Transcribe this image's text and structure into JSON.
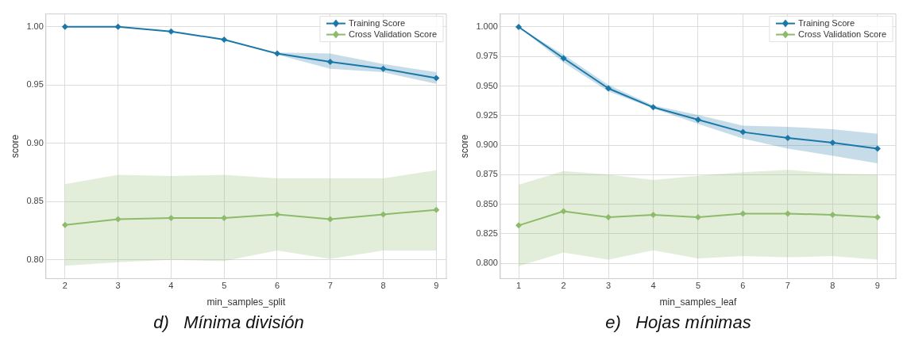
{
  "chart_data": [
    {
      "type": "line",
      "xlabel": "min_samples_split",
      "ylabel": "score",
      "x": [
        2,
        3,
        4,
        5,
        6,
        7,
        8,
        9
      ],
      "xlim": [
        1.64,
        9.19
      ],
      "xticks": [
        2,
        3,
        4,
        5,
        6,
        7,
        8,
        9
      ],
      "ylim": [
        0.784,
        1.011
      ],
      "yticks": [
        {
          "value": 0.8,
          "label": "0.80"
        },
        0.85,
        {
          "value": 0.9,
          "label": "0.90"
        },
        0.95,
        {
          "value": 1,
          "label": "1.00"
        }
      ],
      "grid": true,
      "legend": "top right",
      "marker": "diamond",
      "annotations": [
        "d)   Mínima división"
      ],
      "series": [
        {
          "name": "Training Score",
          "color": "#1a78a8",
          "values": [
            1.0,
            1.0,
            0.996,
            0.989,
            0.977,
            0.97,
            0.964,
            0.956
          ],
          "lower": [
            1.0,
            1.0,
            0.996,
            0.989,
            0.976,
            0.964,
            0.961,
            0.951
          ],
          "upper": [
            1.0,
            1.0,
            0.996,
            0.989,
            0.978,
            0.977,
            0.968,
            0.961
          ]
        },
        {
          "name": "Cross Validation Score",
          "color": "#8dbb6b",
          "values": [
            0.83,
            0.835,
            0.836,
            0.836,
            0.839,
            0.835,
            0.839,
            0.843
          ],
          "lower": [
            0.795,
            0.798,
            0.8,
            0.799,
            0.808,
            0.801,
            0.808,
            0.808
          ],
          "upper": [
            0.865,
            0.873,
            0.872,
            0.873,
            0.87,
            0.87,
            0.87,
            0.877
          ]
        }
      ]
    },
    {
      "type": "line",
      "xlabel": "min_samples_leaf",
      "ylabel": "score",
      "x": [
        1,
        2,
        3,
        4,
        5,
        6,
        7,
        8,
        9
      ],
      "xlim": [
        0.59,
        9.41
      ],
      "xticks": [
        1,
        2,
        3,
        4,
        5,
        6,
        7,
        8,
        9
      ],
      "ylim": [
        0.787,
        1.011
      ],
      "yticks": [
        {
          "value": 0.8,
          "label": "0.800"
        },
        0.825,
        {
          "value": 0.85,
          "label": "0.850"
        },
        0.875,
        {
          "value": 0.9,
          "label": "0.900"
        },
        0.925,
        {
          "value": 0.95,
          "label": "0.950"
        },
        0.975,
        {
          "value": 1,
          "label": "1.000"
        }
      ],
      "grid": true,
      "legend": "top right",
      "marker": "diamond",
      "annotations": [
        "e)   Hojas mínimas"
      ],
      "series": [
        {
          "name": "Training Score",
          "color": "#1a78a8",
          "values": [
            1.0,
            0.9735,
            0.948,
            0.932,
            0.9215,
            0.911,
            0.906,
            0.902,
            0.897
          ],
          "lower": [
            1.0,
            0.97,
            0.9455,
            0.931,
            0.918,
            0.9055,
            0.897,
            0.891,
            0.8845
          ],
          "upper": [
            1.0,
            0.9765,
            0.951,
            0.9335,
            0.9255,
            0.9165,
            0.9155,
            0.9135,
            0.9095
          ]
        },
        {
          "name": "Cross Validation Score",
          "color": "#8dbb6b",
          "values": [
            0.832,
            0.844,
            0.839,
            0.841,
            0.839,
            0.842,
            0.842,
            0.841,
            0.839
          ],
          "lower": [
            0.7975,
            0.809,
            0.803,
            0.811,
            0.804,
            0.806,
            0.805,
            0.806,
            0.803
          ],
          "upper": [
            0.8665,
            0.878,
            0.875,
            0.8705,
            0.874,
            0.877,
            0.879,
            0.876,
            0.875
          ]
        }
      ]
    }
  ]
}
